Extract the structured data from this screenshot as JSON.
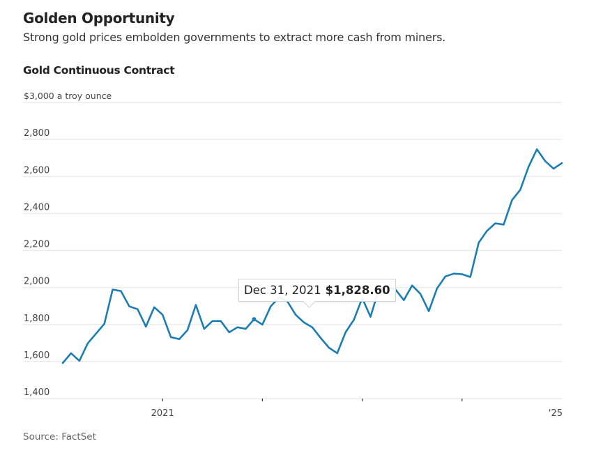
{
  "header": {
    "title": "Golden Opportunity",
    "subtitle": "Strong gold prices embolden governments to extract more cash from miners.",
    "chart_title": "Gold Continuous Contract",
    "source": "Source: FactSet"
  },
  "tooltip": {
    "date": "Dec 31, 2021",
    "value": "$1,828.60"
  },
  "colors": {
    "line": "#1b7db3",
    "grid": "#ececec",
    "text": "#222222"
  },
  "chart_data": {
    "type": "line",
    "title": "Gold Continuous Contract",
    "subtitle": "Strong gold prices embolden governments to extract more cash from miners.",
    "ylabel": "$3,000 a troy ounce",
    "xlabel": "",
    "ylim": [
      1400,
      3000
    ],
    "yticks": [
      1400,
      1600,
      1800,
      2000,
      2200,
      2400,
      2600,
      2800,
      3000
    ],
    "ytick_labels": [
      "1,400",
      "1,600",
      "1,800",
      "2,000",
      "2,200",
      "2,400",
      "2,600",
      "2,800",
      "$3,000 a troy ounce"
    ],
    "xlim": [
      "2020-01",
      "2025-01"
    ],
    "xticks": [
      {
        "date": "2021-01",
        "label": "2021"
      },
      {
        "date": "2022-01",
        "label": ""
      },
      {
        "date": "2023-01",
        "label": ""
      },
      {
        "date": "2024-01",
        "label": ""
      },
      {
        "date": "2025-01",
        "label": "'25"
      }
    ],
    "grid": true,
    "highlight": {
      "date": "2021-12",
      "label": "Dec 31, 2021",
      "value": 1828.6
    },
    "series": [
      {
        "name": "Gold Continuous Contract",
        "x": [
          "2020-01",
          "2020-02",
          "2020-03",
          "2020-04",
          "2020-05",
          "2020-06",
          "2020-07",
          "2020-08",
          "2020-09",
          "2020-10",
          "2020-11",
          "2020-12",
          "2021-01",
          "2021-02",
          "2021-03",
          "2021-04",
          "2021-05",
          "2021-06",
          "2021-07",
          "2021-08",
          "2021-09",
          "2021-10",
          "2021-11",
          "2021-12",
          "2022-01",
          "2022-02",
          "2022-03",
          "2022-04",
          "2022-05",
          "2022-06",
          "2022-07",
          "2022-08",
          "2022-09",
          "2022-10",
          "2022-11",
          "2022-12",
          "2023-01",
          "2023-02",
          "2023-03",
          "2023-04",
          "2023-05",
          "2023-06",
          "2023-07",
          "2023-08",
          "2023-09",
          "2023-10",
          "2023-11",
          "2023-12",
          "2024-01",
          "2024-02",
          "2024-03",
          "2024-04",
          "2024-05",
          "2024-06",
          "2024-07",
          "2024-08",
          "2024-09",
          "2024-10",
          "2024-11",
          "2024-12",
          "2025-01"
        ],
        "values": [
          1592,
          1645,
          1604,
          1698,
          1751,
          1804,
          1989,
          1981,
          1898,
          1883,
          1789,
          1894,
          1853,
          1732,
          1721,
          1770,
          1906,
          1777,
          1819,
          1819,
          1758,
          1785,
          1777,
          1828.6,
          1800,
          1898,
          1947,
          1925,
          1853,
          1811,
          1785,
          1728,
          1675,
          1645,
          1758,
          1826,
          1943,
          1842,
          1992,
          2004,
          1989,
          1932,
          2011,
          1966,
          1872,
          1996,
          2060,
          2075,
          2072,
          2057,
          2242,
          2306,
          2347,
          2340,
          2472,
          2528,
          2653,
          2747,
          2683,
          2642,
          2672
        ]
      }
    ]
  }
}
